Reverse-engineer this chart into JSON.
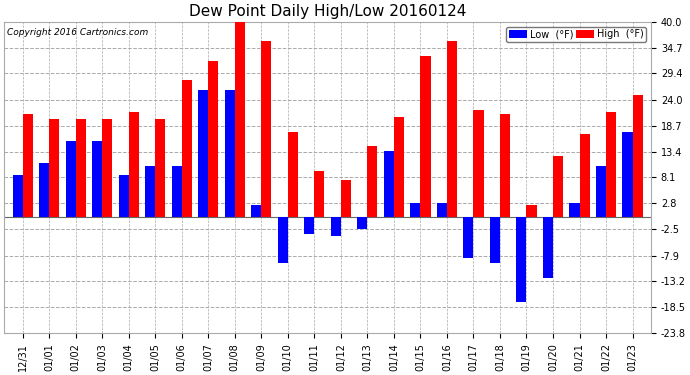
{
  "title": "Dew Point Daily High/Low 20160124",
  "copyright": "Copyright 2016 Cartronics.com",
  "legend_low_label": "Low  (°F)",
  "legend_high_label": "High  (°F)",
  "dates": [
    "12/31",
    "01/01",
    "01/02",
    "01/03",
    "01/04",
    "01/05",
    "01/06",
    "01/07",
    "01/08",
    "01/09",
    "01/10",
    "01/11",
    "01/12",
    "01/13",
    "01/14",
    "01/15",
    "01/16",
    "01/17",
    "01/18",
    "01/19",
    "01/20",
    "01/21",
    "01/22",
    "01/23"
  ],
  "high": [
    21.0,
    20.0,
    20.0,
    20.0,
    21.5,
    20.0,
    28.0,
    32.0,
    40.0,
    36.0,
    17.5,
    9.5,
    7.5,
    14.5,
    20.5,
    33.0,
    36.0,
    22.0,
    21.0,
    2.5,
    12.5,
    17.0,
    21.5,
    25.0
  ],
  "low": [
    8.5,
    11.0,
    15.5,
    15.5,
    8.5,
    10.5,
    10.5,
    26.0,
    26.0,
    2.5,
    -9.5,
    -3.5,
    -4.0,
    -2.5,
    13.5,
    2.8,
    2.8,
    -8.5,
    -9.5,
    -17.5,
    -12.5,
    2.8,
    10.5,
    17.5
  ],
  "ylim": [
    -23.8,
    40.0
  ],
  "yticks": [
    40.0,
    34.7,
    29.4,
    24.0,
    18.7,
    13.4,
    8.1,
    2.8,
    -2.5,
    -7.9,
    -13.2,
    -18.5,
    -23.8
  ],
  "bar_width": 0.38,
  "high_color": "#ff0000",
  "low_color": "#0000ff",
  "background_color": "#ffffff",
  "grid_color": "#aaaaaa",
  "title_fontsize": 11,
  "tick_fontsize": 7,
  "copyright_fontsize": 6.5
}
